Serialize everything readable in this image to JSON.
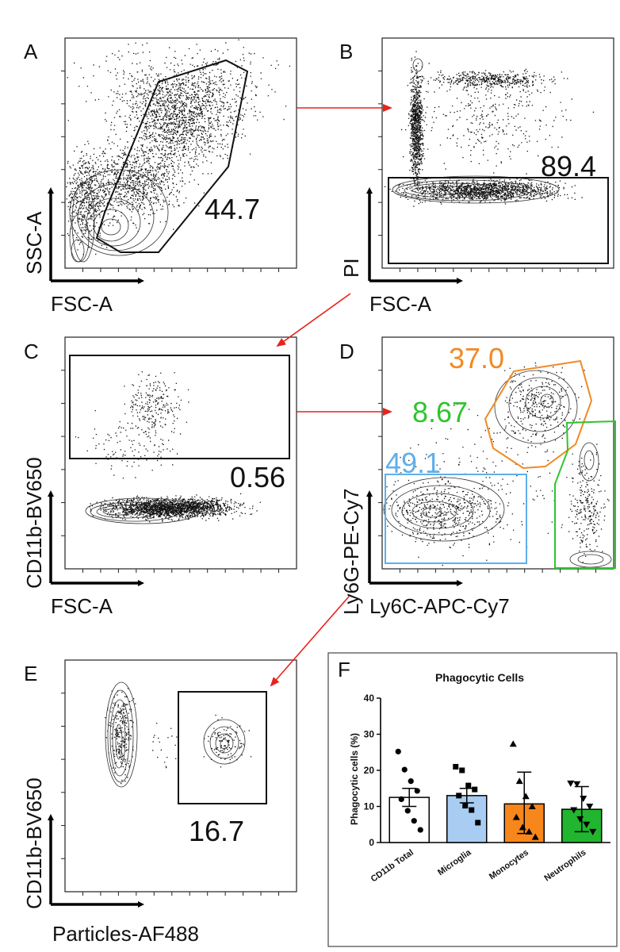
{
  "panels": {
    "A": {
      "letter": "A",
      "x_label": "FSC-A",
      "y_label": "SSC-A",
      "gate_value": "44.7"
    },
    "B": {
      "letter": "B",
      "x_label": "FSC-A",
      "y_label": "PI",
      "gate_value": "89.4"
    },
    "C": {
      "letter": "C",
      "x_label": "FSC-A",
      "y_label": "CD11b-BV650",
      "gate_value": "0.56"
    },
    "D": {
      "letter": "D",
      "x_label": "Ly6C-APC-Cy7",
      "y_label": "Ly6G-PE-Cy7",
      "gates": [
        {
          "name": "monocytes",
          "value": "37.0",
          "color": "#f08a24"
        },
        {
          "name": "neutrophils",
          "value": "8.67",
          "color": "#2fc42f"
        },
        {
          "name": "microglia",
          "value": "49.1",
          "color": "#62aee8"
        }
      ]
    },
    "E": {
      "letter": "E",
      "x_label": "Particles-AF488",
      "y_label": "CD11b-BV650",
      "gate_value": "16.7"
    }
  },
  "colors": {
    "arrow": "#e8221c",
    "gate": "#111111",
    "microglia": "#a9cdf2",
    "monocytes": "#f7861b",
    "neutrophils": "#22b530",
    "cd11b_total": "#ffffff"
  },
  "chart_data": {
    "type": "bar",
    "panel_letter": "F",
    "title": "Phagocytic Cells",
    "ylabel": "Phagocytic cells  (%)",
    "xlabel": "",
    "ylim": [
      0,
      40
    ],
    "yticks": [
      "0",
      "10",
      "20",
      "30",
      "40"
    ],
    "categories": [
      "CD11b Total",
      "Microglia",
      "Monocytes",
      "Neutrophils"
    ],
    "values": [
      12.5,
      13.0,
      10.7,
      9.2
    ],
    "error_upper": [
      15.0,
      15.0,
      19.5,
      15.5
    ],
    "error_lower": [
      10.0,
      11.0,
      2.5,
      3.0
    ],
    "markers": [
      "circle",
      "square",
      "triangle-up",
      "triangle-down"
    ],
    "points": [
      [
        25.2,
        20.2,
        17.0,
        14.3,
        12.0,
        8.8,
        6.0,
        3.5
      ],
      [
        21.0,
        20.0,
        15.8,
        14.7,
        13.0,
        10.2,
        9.0,
        5.5
      ],
      [
        27.3,
        17.0,
        12.8,
        10.0,
        7.0,
        4.2,
        3.0,
        1.5
      ],
      [
        16.4,
        16.2,
        12.2,
        10.0,
        9.0,
        6.5,
        5.0,
        3.0
      ]
    ]
  }
}
